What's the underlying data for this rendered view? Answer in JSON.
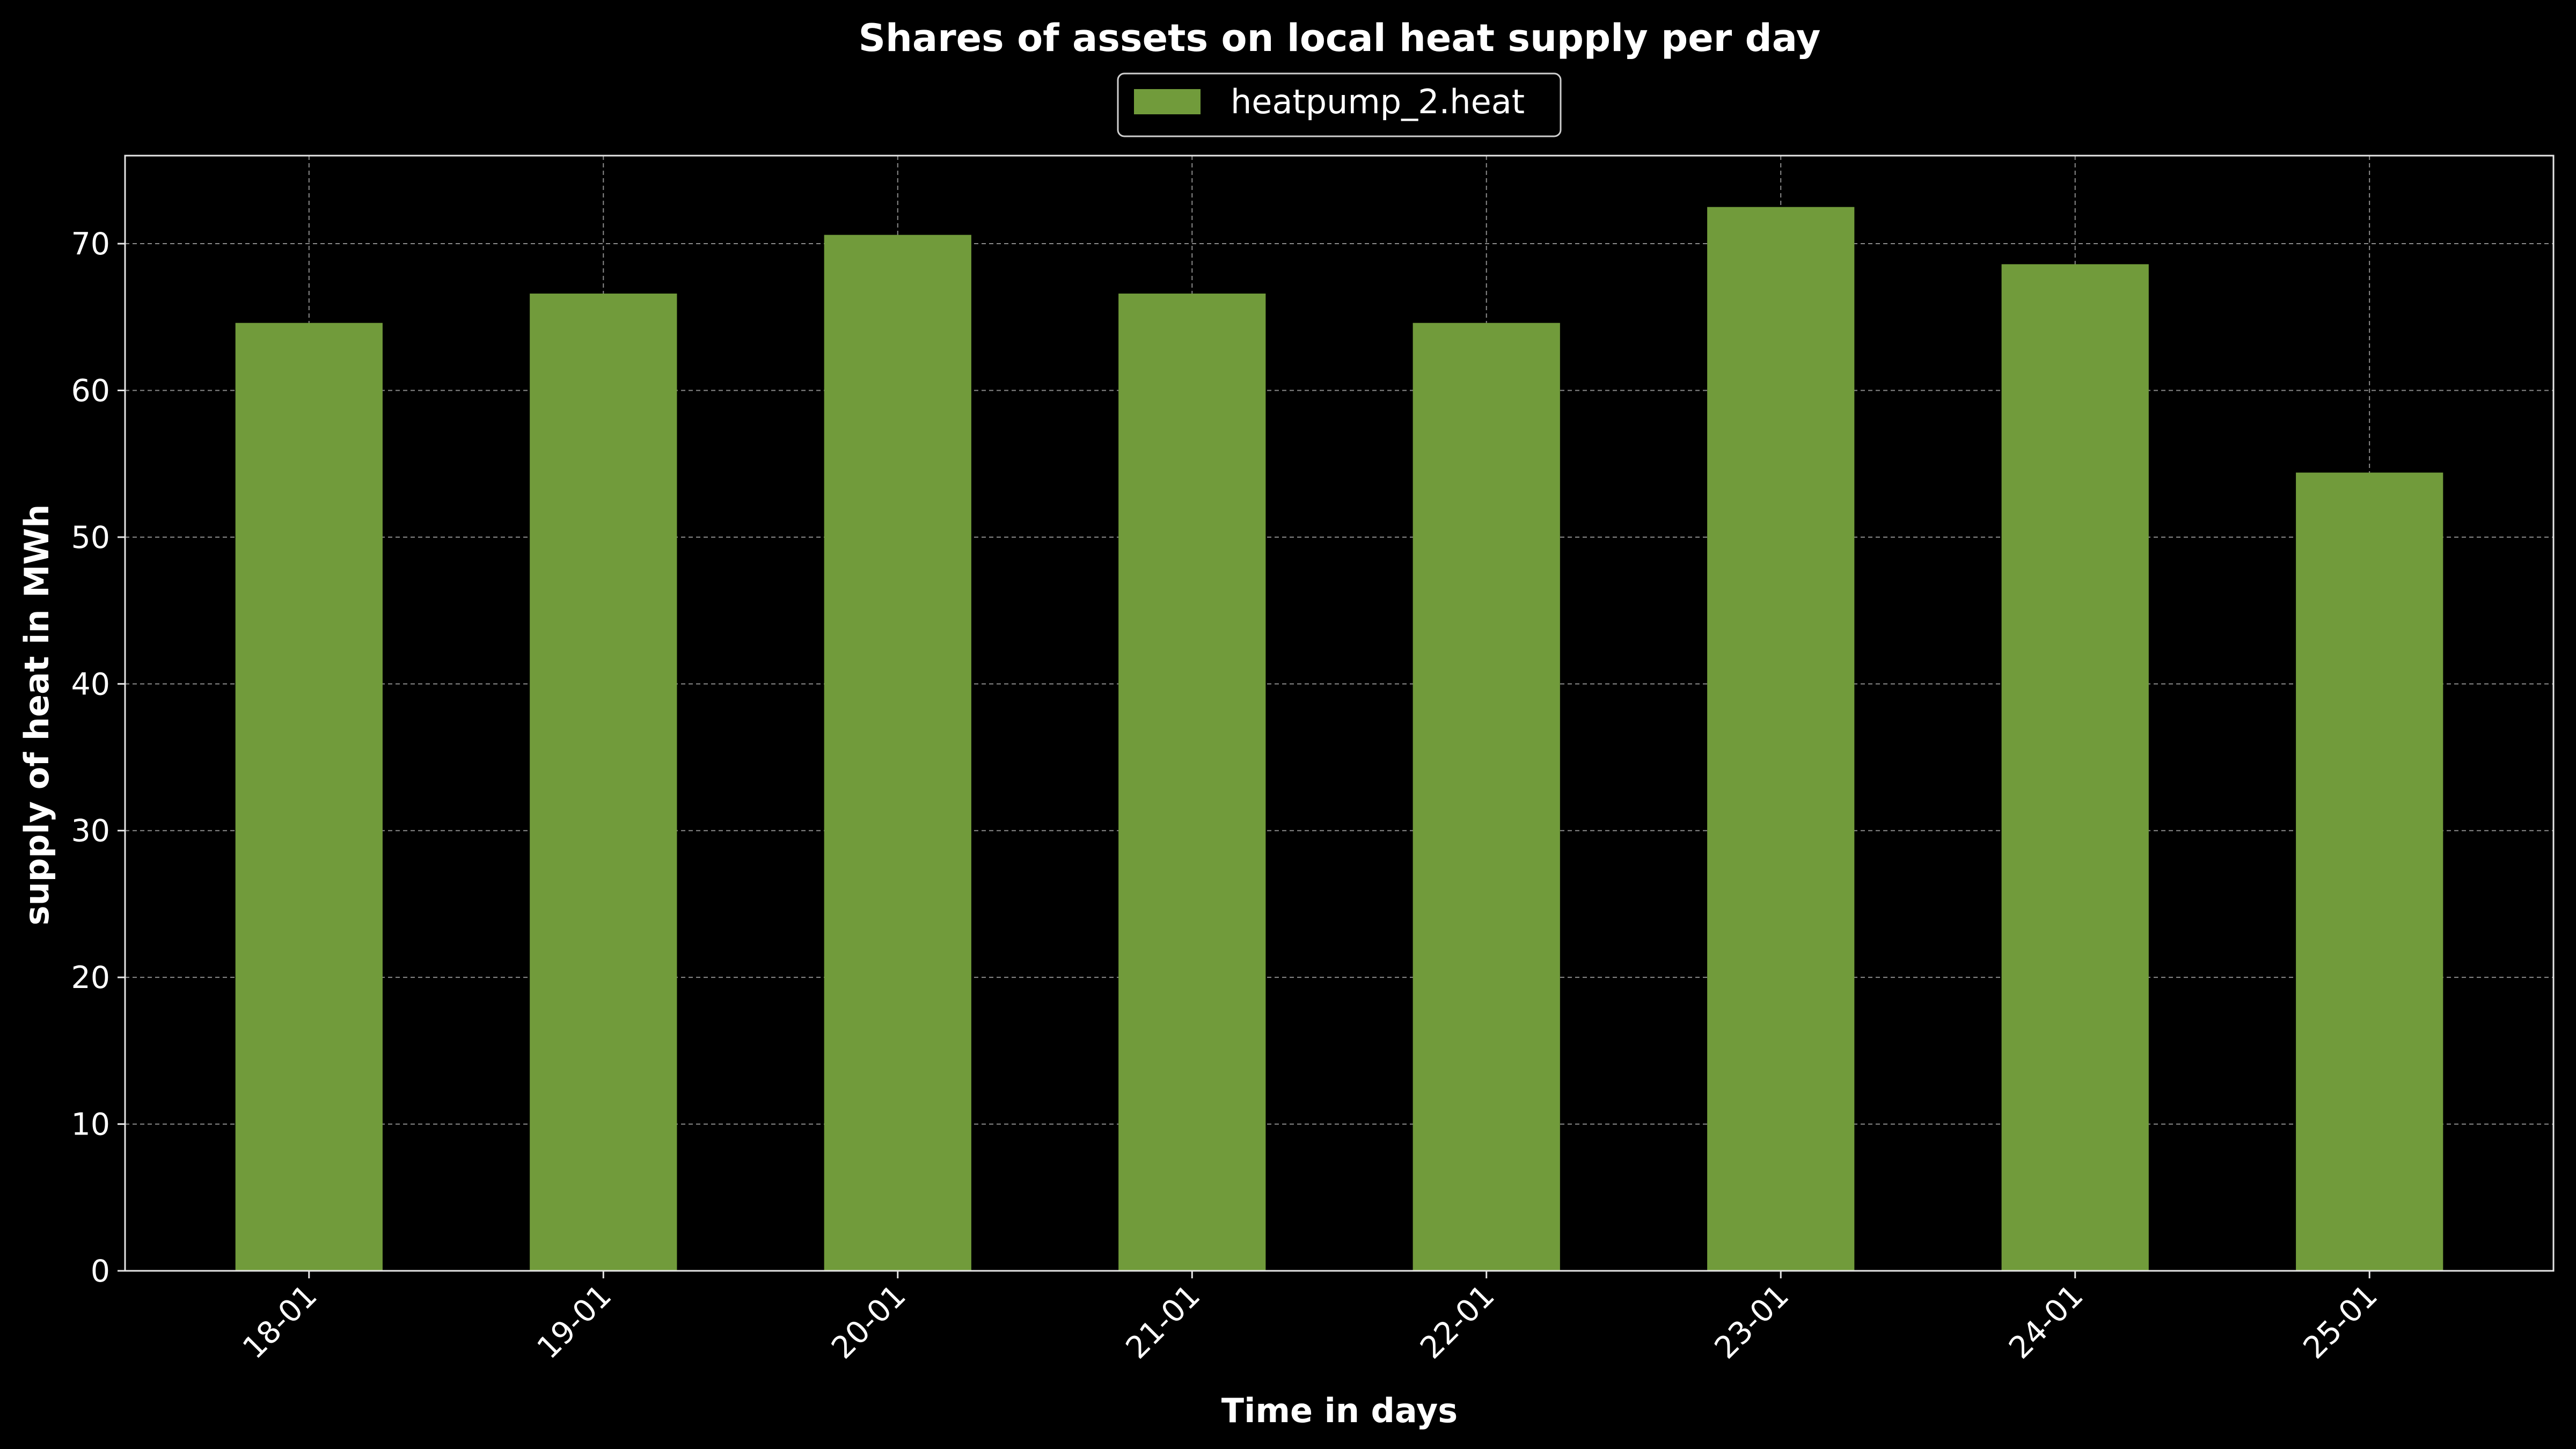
{
  "chart_data": {
    "type": "bar",
    "title": "Shares of assets on local heat supply per day",
    "xlabel": "Time in days",
    "ylabel": "supply of heat in MWh",
    "categories": [
      "18-01",
      "19-01",
      "20-01",
      "21-01",
      "22-01",
      "23-01",
      "24-01",
      "25-01"
    ],
    "series": [
      {
        "name": "heatpump_2.heat",
        "color": "#719b3b",
        "values": [
          64.6,
          66.6,
          70.6,
          66.6,
          64.6,
          72.5,
          68.6,
          54.4
        ]
      }
    ],
    "ylim": [
      0,
      76
    ],
    "yticks": [
      0,
      10,
      20,
      30,
      40,
      50,
      60,
      70
    ],
    "grid": true,
    "legend_position": "top-center",
    "background": "#000000"
  }
}
